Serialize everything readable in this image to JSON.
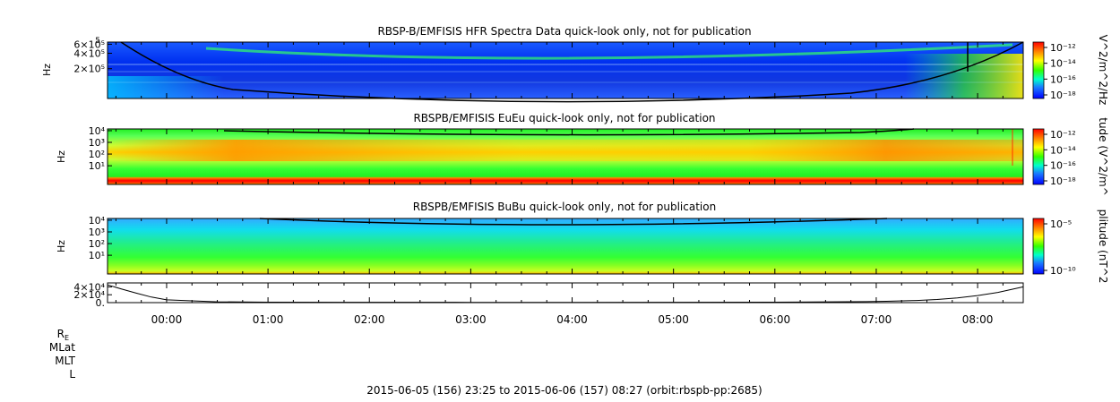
{
  "chart_data": [
    {
      "type": "heatmap",
      "title": "RBSP-B/EMFISIS  HFR Spectra Data quick-look only, not for publication",
      "ylabel": "Hz",
      "scale": "log",
      "ytick_labels": [
        {
          "value": 600000,
          "label": "6×10⁵"
        },
        {
          "value": 400000,
          "label": "4×10⁵"
        },
        {
          "value": 200000,
          "label": "2×10⁵"
        }
      ],
      "ytick_top_exponent": "5",
      "colorbar_label": "V^2/m^2/Hz",
      "colorbar_ticks": [
        "10⁻¹²",
        "10⁻¹⁴",
        "10⁻¹⁶",
        "10⁻¹⁸"
      ],
      "trace_color": "#000000"
    },
    {
      "type": "heatmap",
      "title": "RBSPB/EMFISIS  EuEu quick-look only, not for publication",
      "ylabel": "Hz",
      "scale": "log",
      "ytick_labels": [
        {
          "value": 10000,
          "label": "10⁴"
        },
        {
          "value": 1000,
          "label": "10³"
        },
        {
          "value": 100,
          "label": "10²"
        },
        {
          "value": 10,
          "label": "10¹"
        }
      ],
      "colorbar_label": "tude (V^2/m^",
      "colorbar_ticks": [
        "10⁻¹²",
        "10⁻¹⁴",
        "10⁻¹⁶",
        "10⁻¹⁸"
      ]
    },
    {
      "type": "heatmap",
      "title": "RBSPB/EMFISIS  BuBu quick-look only, not for publication",
      "ylabel": "Hz",
      "scale": "log",
      "ytick_labels": [
        {
          "value": 10000,
          "label": "10⁴"
        },
        {
          "value": 1000,
          "label": "10³"
        },
        {
          "value": 100,
          "label": "10²"
        },
        {
          "value": 10,
          "label": "10¹"
        }
      ],
      "colorbar_label": "plitude (nT^2",
      "colorbar_ticks": [
        "10⁻⁵",
        "10⁻¹⁰"
      ]
    },
    {
      "type": "line",
      "ytick_labels": [
        {
          "value": 40000,
          "label": "4×10⁴"
        },
        {
          "value": 20000,
          "label": "2×10⁴"
        },
        {
          "value": 0,
          "label": "0."
        }
      ],
      "series": [
        {
          "x_hours": [
            -0.58,
            -0.45,
            -0.3,
            -0.15,
            0.0,
            0.5,
            1.0,
            2.0,
            3.0,
            4.0,
            5.0,
            6.0,
            6.9,
            7.1,
            7.4,
            7.6,
            7.8,
            8.0,
            8.2,
            8.45
          ],
          "y": [
            45000,
            35000,
            24000,
            14000,
            7000,
            2000,
            1200,
            800,
            700,
            700,
            800,
            1200,
            2500,
            3500,
            5500,
            8000,
            12000,
            18000,
            26000,
            40000
          ]
        }
      ]
    }
  ],
  "time_axis": {
    "start_hours": -0.583,
    "end_hours": 8.45,
    "tick_labels": [
      "00:00",
      "01:00",
      "02:00",
      "03:00",
      "04:00",
      "05:00",
      "06:00",
      "07:00",
      "08:00"
    ]
  },
  "ephemeris_labels": {
    "re": "R",
    "re_sub": "E",
    "mlat": "MLat",
    "mlt": "MLT",
    "l": "L"
  },
  "footer": "2015-06-05 (156) 23:25 to 2015-06-06 (157) 08:27 (orbit:rbspb-pp:2685)"
}
